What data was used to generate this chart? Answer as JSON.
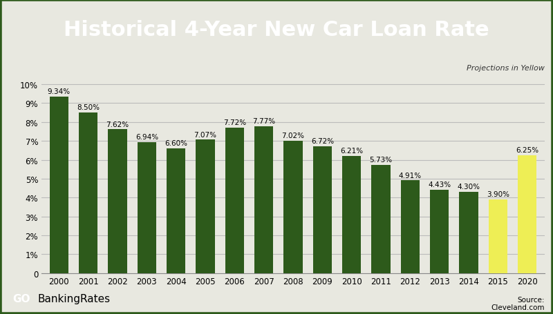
{
  "title": "Historical 4-Year New Car Loan Rate",
  "categories": [
    "2000",
    "2001",
    "2002",
    "2003",
    "2004",
    "2005",
    "2006",
    "2007",
    "2008",
    "2009",
    "2010",
    "2011",
    "2012",
    "2013",
    "2014",
    "2015",
    "2020"
  ],
  "values": [
    9.34,
    8.5,
    7.62,
    6.94,
    6.6,
    7.07,
    7.72,
    7.77,
    7.02,
    6.72,
    6.21,
    5.73,
    4.91,
    4.43,
    4.3,
    3.9,
    6.25
  ],
  "bar_colors": [
    "#2d5a1b",
    "#2d5a1b",
    "#2d5a1b",
    "#2d5a1b",
    "#2d5a1b",
    "#2d5a1b",
    "#2d5a1b",
    "#2d5a1b",
    "#2d5a1b",
    "#2d5a1b",
    "#2d5a1b",
    "#2d5a1b",
    "#2d5a1b",
    "#2d5a1b",
    "#2d5a1b",
    "#eeee55",
    "#eeee55"
  ],
  "title_bg_color": "#2d5a1b",
  "title_text_color": "#ffffff",
  "chart_bg_color": "#e8e8e0",
  "grid_color": "#bbbbbb",
  "border_color": "#2d5a1b",
  "ylabel_ticks": [
    "0",
    "1%",
    "2%",
    "3%",
    "4%",
    "5%",
    "6%",
    "7%",
    "8%",
    "9%",
    "10%"
  ],
  "ylim": [
    0,
    10.5
  ],
  "projection_note": "Projections in Yellow",
  "source_text": "Source:\nCleveland.com",
  "logo_go_text": "GO",
  "logo_banking_text": "BankingRates",
  "annotation_fontsize": 7.5,
  "title_fontsize": 22
}
